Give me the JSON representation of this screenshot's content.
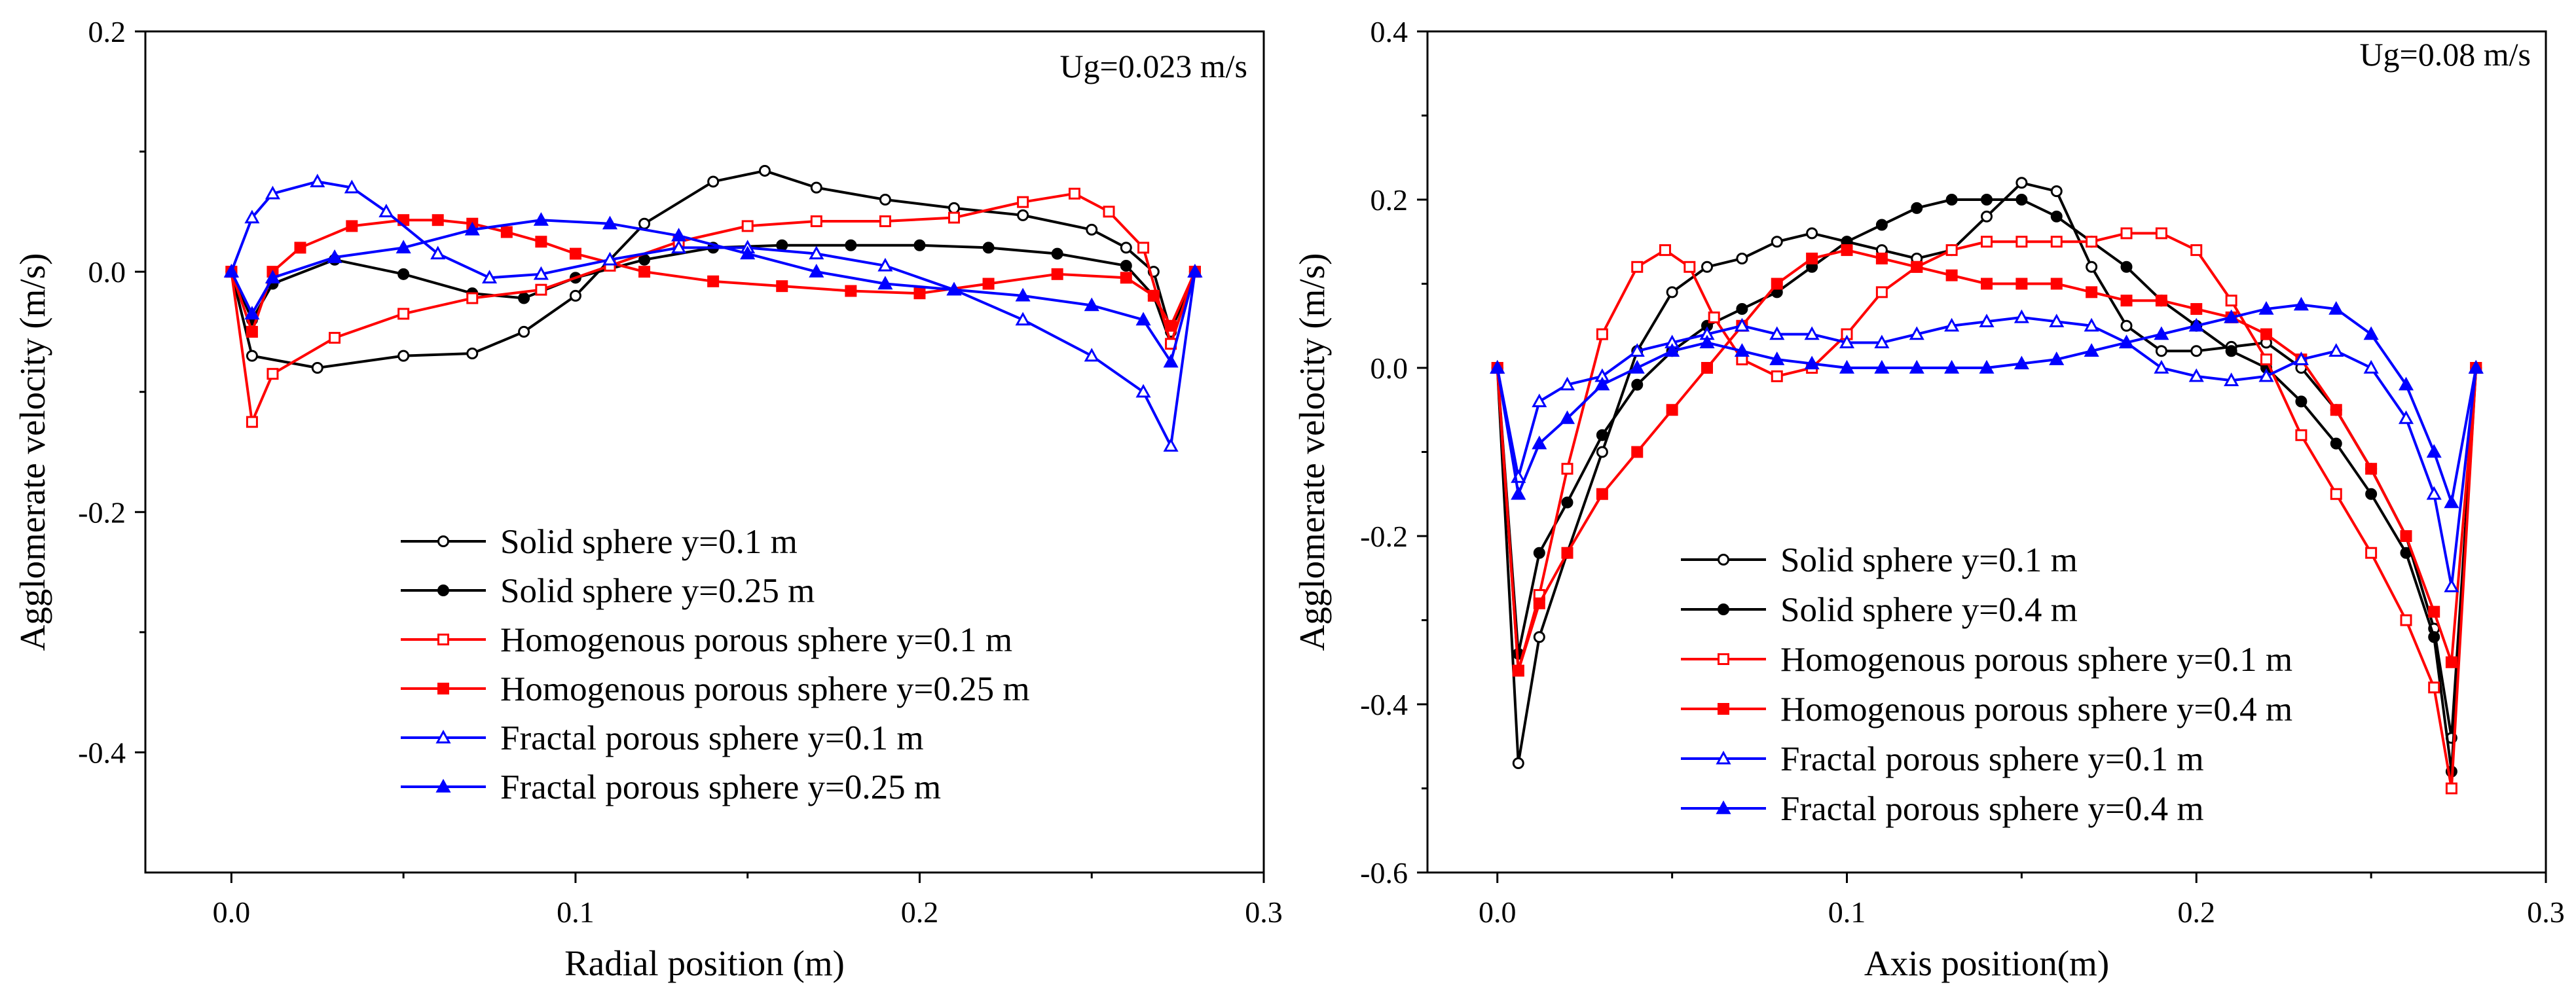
{
  "chart_data": [
    {
      "type": "line",
      "annotation": "Ug=0.023 m/s",
      "xlabel": "Radial position (m)",
      "ylabel": "Agglomerate velocity (m/s)",
      "xlim": [
        -0.025,
        0.3
      ],
      "ylim": [
        -0.5,
        0.2
      ],
      "xticks": [
        0.0,
        0.1,
        0.2,
        0.3
      ],
      "xtick_labels": [
        "0.0",
        "0.1",
        "0.2",
        "0.3"
      ],
      "yticks": [
        0.2,
        0.0,
        -0.2,
        -0.4
      ],
      "ytick_labels": [
        "0.2",
        "0.0",
        "-0.2",
        "-0.4"
      ],
      "legend_position": "lower-center",
      "series": [
        {
          "name": "Solid sphere y=0.1 m",
          "color": "#000000",
          "marker": "circle-open",
          "x": [
            0,
            0.006,
            0.025,
            0.05,
            0.07,
            0.085,
            0.1,
            0.12,
            0.14,
            0.155,
            0.17,
            0.19,
            0.21,
            0.23,
            0.25,
            0.26,
            0.268,
            0.273,
            0.28
          ],
          "y": [
            0,
            -0.07,
            -0.08,
            -0.07,
            -0.068,
            -0.05,
            -0.02,
            0.04,
            0.075,
            0.084,
            0.07,
            0.06,
            0.053,
            0.047,
            0.035,
            0.02,
            0.0,
            -0.05,
            0
          ]
        },
        {
          "name": "Solid sphere y=0.25 m",
          "color": "#000000",
          "marker": "circle-filled",
          "x": [
            0,
            0.006,
            0.012,
            0.03,
            0.05,
            0.07,
            0.085,
            0.1,
            0.12,
            0.14,
            0.16,
            0.18,
            0.2,
            0.22,
            0.24,
            0.26,
            0.268,
            0.273,
            0.28
          ],
          "y": [
            0,
            -0.04,
            -0.01,
            0.01,
            -0.002,
            -0.018,
            -0.022,
            -0.005,
            0.01,
            0.02,
            0.022,
            0.022,
            0.022,
            0.02,
            0.015,
            0.005,
            -0.02,
            -0.06,
            0
          ]
        },
        {
          "name": "Homogenous porous sphere y=0.1 m",
          "color": "#ff0000",
          "marker": "square-open",
          "x": [
            0,
            0.006,
            0.012,
            0.03,
            0.05,
            0.07,
            0.09,
            0.11,
            0.13,
            0.15,
            0.17,
            0.19,
            0.21,
            0.23,
            0.245,
            0.255,
            0.265,
            0.273,
            0.28
          ],
          "y": [
            0,
            -0.125,
            -0.085,
            -0.055,
            -0.035,
            -0.022,
            -0.015,
            0.005,
            0.025,
            0.038,
            0.042,
            0.042,
            0.045,
            0.058,
            0.065,
            0.05,
            0.02,
            -0.06,
            0
          ]
        },
        {
          "name": "Homogenous porous sphere y=0.25 m",
          "color": "#ff0000",
          "marker": "square-filled",
          "x": [
            0,
            0.006,
            0.012,
            0.02,
            0.035,
            0.05,
            0.06,
            0.07,
            0.08,
            0.09,
            0.1,
            0.12,
            0.14,
            0.16,
            0.18,
            0.2,
            0.22,
            0.24,
            0.26,
            0.268,
            0.273,
            0.28
          ],
          "y": [
            0,
            -0.05,
            0.0,
            0.02,
            0.038,
            0.043,
            0.043,
            0.04,
            0.033,
            0.025,
            0.015,
            0.0,
            -0.008,
            -0.012,
            -0.016,
            -0.018,
            -0.01,
            -0.002,
            -0.005,
            -0.02,
            -0.045,
            0
          ]
        },
        {
          "name": "Fractal porous sphere y=0.1 m",
          "color": "#0000ff",
          "marker": "triangle-open",
          "x": [
            0,
            0.006,
            0.012,
            0.025,
            0.035,
            0.045,
            0.06,
            0.075,
            0.09,
            0.11,
            0.13,
            0.15,
            0.17,
            0.19,
            0.21,
            0.23,
            0.25,
            0.265,
            0.273,
            0.28
          ],
          "y": [
            0,
            0.045,
            0.065,
            0.075,
            0.07,
            0.05,
            0.015,
            -0.005,
            -0.002,
            0.01,
            0.02,
            0.02,
            0.015,
            0.005,
            -0.015,
            -0.04,
            -0.07,
            -0.1,
            -0.145,
            0
          ]
        },
        {
          "name": "Fractal porous sphere y=0.25 m",
          "color": "#0000ff",
          "marker": "triangle-filled",
          "x": [
            0,
            0.006,
            0.012,
            0.03,
            0.05,
            0.07,
            0.09,
            0.11,
            0.13,
            0.15,
            0.17,
            0.19,
            0.21,
            0.23,
            0.25,
            0.265,
            0.273,
            0.28
          ],
          "y": [
            0,
            -0.035,
            -0.005,
            0.012,
            0.02,
            0.035,
            0.043,
            0.04,
            0.03,
            0.015,
            0.0,
            -0.01,
            -0.015,
            -0.02,
            -0.028,
            -0.04,
            -0.075,
            0
          ]
        }
      ]
    },
    {
      "type": "line",
      "annotation": "Ug=0.08 m/s",
      "xlabel": "Axis position(m)",
      "ylabel": "Agglomerate velocity (m/s)",
      "xlim": [
        -0.02,
        0.3
      ],
      "ylim": [
        -0.6,
        0.4
      ],
      "xticks": [
        0.0,
        0.1,
        0.2,
        0.3
      ],
      "xtick_labels": [
        "0.0",
        "0.1",
        "0.2",
        "0.3"
      ],
      "yticks": [
        0.4,
        0.2,
        0.0,
        -0.2,
        -0.4,
        -0.6
      ],
      "ytick_labels": [
        "0.4",
        "0.2",
        "0.0",
        "-0.2",
        "-0.4",
        "-0.6"
      ],
      "legend_position": "lower-center",
      "series": [
        {
          "name": "Solid sphere y=0.1 m",
          "color": "#000000",
          "marker": "circle-open",
          "x": [
            0,
            0.006,
            0.012,
            0.02,
            0.03,
            0.04,
            0.05,
            0.06,
            0.07,
            0.08,
            0.09,
            0.1,
            0.11,
            0.12,
            0.13,
            0.14,
            0.15,
            0.16,
            0.17,
            0.18,
            0.19,
            0.2,
            0.21,
            0.22,
            0.23,
            0.24,
            0.25,
            0.26,
            0.268,
            0.273,
            0.28
          ],
          "y": [
            0,
            -0.47,
            -0.32,
            -0.22,
            -0.1,
            0.02,
            0.09,
            0.12,
            0.13,
            0.15,
            0.16,
            0.15,
            0.14,
            0.13,
            0.14,
            0.18,
            0.22,
            0.21,
            0.12,
            0.05,
            0.02,
            0.02,
            0.025,
            0.03,
            0.0,
            -0.05,
            -0.12,
            -0.2,
            -0.31,
            -0.44,
            0
          ]
        },
        {
          "name": "Solid sphere y=0.4 m",
          "color": "#000000",
          "marker": "circle-filled",
          "x": [
            0,
            0.006,
            0.012,
            0.02,
            0.03,
            0.04,
            0.05,
            0.06,
            0.07,
            0.08,
            0.09,
            0.1,
            0.11,
            0.12,
            0.13,
            0.14,
            0.15,
            0.16,
            0.17,
            0.18,
            0.19,
            0.2,
            0.21,
            0.22,
            0.23,
            0.24,
            0.25,
            0.26,
            0.268,
            0.273,
            0.28
          ],
          "y": [
            0,
            -0.34,
            -0.22,
            -0.16,
            -0.08,
            -0.02,
            0.02,
            0.05,
            0.07,
            0.09,
            0.12,
            0.15,
            0.17,
            0.19,
            0.2,
            0.2,
            0.2,
            0.18,
            0.15,
            0.12,
            0.08,
            0.05,
            0.02,
            0.0,
            -0.04,
            -0.09,
            -0.15,
            -0.22,
            -0.32,
            -0.48,
            0
          ]
        },
        {
          "name": "Homogenous porous sphere y=0.1 m",
          "color": "#ff0000",
          "marker": "square-open",
          "x": [
            0,
            0.006,
            0.012,
            0.02,
            0.03,
            0.04,
            0.048,
            0.055,
            0.062,
            0.07,
            0.08,
            0.09,
            0.1,
            0.11,
            0.12,
            0.13,
            0.14,
            0.15,
            0.16,
            0.17,
            0.18,
            0.19,
            0.2,
            0.21,
            0.22,
            0.23,
            0.24,
            0.25,
            0.26,
            0.268,
            0.273,
            0.28
          ],
          "y": [
            0,
            -0.36,
            -0.27,
            -0.12,
            0.04,
            0.12,
            0.14,
            0.12,
            0.06,
            0.01,
            -0.01,
            0.0,
            0.04,
            0.09,
            0.12,
            0.14,
            0.15,
            0.15,
            0.15,
            0.15,
            0.16,
            0.16,
            0.14,
            0.08,
            0.01,
            -0.08,
            -0.15,
            -0.22,
            -0.3,
            -0.38,
            -0.5,
            0
          ]
        },
        {
          "name": "Homogenous porous sphere y=0.4 m",
          "color": "#ff0000",
          "marker": "square-filled",
          "x": [
            0,
            0.006,
            0.012,
            0.02,
            0.03,
            0.04,
            0.05,
            0.06,
            0.07,
            0.08,
            0.09,
            0.1,
            0.11,
            0.12,
            0.13,
            0.14,
            0.15,
            0.16,
            0.17,
            0.18,
            0.19,
            0.2,
            0.21,
            0.22,
            0.23,
            0.24,
            0.25,
            0.26,
            0.268,
            0.273,
            0.28
          ],
          "y": [
            0,
            -0.36,
            -0.28,
            -0.22,
            -0.15,
            -0.1,
            -0.05,
            0.0,
            0.05,
            0.1,
            0.13,
            0.14,
            0.13,
            0.12,
            0.11,
            0.1,
            0.1,
            0.1,
            0.09,
            0.08,
            0.08,
            0.07,
            0.06,
            0.04,
            0.01,
            -0.05,
            -0.12,
            -0.2,
            -0.29,
            -0.35,
            0
          ]
        },
        {
          "name": "Fractal porous sphere y=0.1 m",
          "color": "#0000ff",
          "marker": "triangle-open",
          "x": [
            0,
            0.006,
            0.012,
            0.02,
            0.03,
            0.04,
            0.05,
            0.06,
            0.07,
            0.08,
            0.09,
            0.1,
            0.11,
            0.12,
            0.13,
            0.14,
            0.15,
            0.16,
            0.17,
            0.18,
            0.19,
            0.2,
            0.21,
            0.22,
            0.23,
            0.24,
            0.25,
            0.26,
            0.268,
            0.273,
            0.28
          ],
          "y": [
            0,
            -0.13,
            -0.04,
            -0.02,
            -0.01,
            0.02,
            0.03,
            0.04,
            0.05,
            0.04,
            0.04,
            0.03,
            0.03,
            0.04,
            0.05,
            0.055,
            0.06,
            0.055,
            0.05,
            0.03,
            0.0,
            -0.01,
            -0.015,
            -0.01,
            0.01,
            0.02,
            0.0,
            -0.06,
            -0.15,
            -0.26,
            0
          ]
        },
        {
          "name": "Fractal porous sphere y=0.4 m",
          "color": "#0000ff",
          "marker": "triangle-filled",
          "x": [
            0,
            0.006,
            0.012,
            0.02,
            0.03,
            0.04,
            0.05,
            0.06,
            0.07,
            0.08,
            0.09,
            0.1,
            0.11,
            0.12,
            0.13,
            0.14,
            0.15,
            0.16,
            0.17,
            0.18,
            0.19,
            0.2,
            0.21,
            0.22,
            0.23,
            0.24,
            0.25,
            0.26,
            0.268,
            0.273,
            0.28
          ],
          "y": [
            0,
            -0.15,
            -0.09,
            -0.06,
            -0.02,
            0.0,
            0.02,
            0.03,
            0.02,
            0.01,
            0.005,
            0.0,
            0.0,
            0.0,
            0.0,
            0.0,
            0.005,
            0.01,
            0.02,
            0.03,
            0.04,
            0.05,
            0.06,
            0.07,
            0.075,
            0.07,
            0.04,
            -0.02,
            -0.1,
            -0.16,
            0
          ]
        }
      ]
    }
  ]
}
